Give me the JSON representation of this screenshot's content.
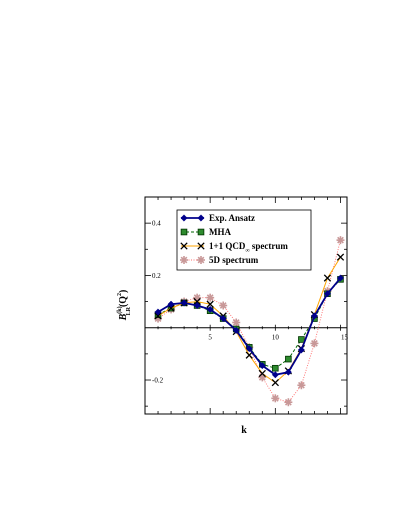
{
  "chart_data": {
    "type": "line",
    "xlabel": "k",
    "ylabel_main": "B",
    "ylabel_sup": "(k)",
    "ylabel_sub": "LR",
    "ylabel_arg": "(Q",
    "ylabel_arg_sup": "2",
    "ylabel_arg_end": ")",
    "xlim": [
      0,
      15.5
    ],
    "ylim": [
      -0.33,
      0.5
    ],
    "xticks": [
      5,
      10,
      15
    ],
    "xtick_labels": [
      "5",
      "10",
      "15"
    ],
    "yticks": [
      -0.2,
      0.2,
      0.4
    ],
    "ytick_labels": [
      "-0.2",
      "0.2",
      "0.4"
    ],
    "legend_position": "top-center",
    "series": [
      {
        "name": "Exp. Ansatz",
        "color": "#00008b",
        "marker": "diamond",
        "x": [
          1,
          2,
          3,
          4,
          5,
          6,
          7,
          8,
          9,
          10,
          11,
          12,
          13,
          14,
          15
        ],
        "y": [
          0.06,
          0.09,
          0.095,
          0.085,
          0.07,
          0.035,
          -0.01,
          -0.08,
          -0.145,
          -0.18,
          -0.17,
          -0.085,
          0.045,
          0.13,
          0.19
        ]
      },
      {
        "name": "MHA",
        "color": "#006400",
        "marker": "square",
        "x": [
          1,
          2,
          3,
          4,
          5,
          6,
          7,
          8,
          9,
          10,
          11,
          12,
          13,
          14,
          15
        ],
        "y": [
          0.05,
          0.075,
          0.095,
          0.085,
          0.065,
          0.035,
          -0.005,
          -0.075,
          -0.14,
          -0.155,
          -0.12,
          -0.045,
          0.035,
          0.13,
          0.185
        ]
      },
      {
        "name": "1+1 QCD",
        "name_sub": "∞",
        "name_suffix": " spectrum",
        "color": "#ffa500",
        "marker": "cross",
        "x": [
          1,
          2,
          3,
          4,
          5,
          6,
          7,
          8,
          9,
          10,
          11,
          12,
          13,
          14,
          15
        ],
        "y": [
          0.045,
          0.075,
          0.095,
          0.1,
          0.09,
          0.045,
          -0.015,
          -0.105,
          -0.175,
          -0.21,
          -0.165,
          -0.08,
          0.05,
          0.19,
          0.27
        ]
      },
      {
        "name": "5D  spectrum",
        "color": "#ff6b6b",
        "marker_color": "#c89898",
        "marker": "asterisk",
        "x": [
          1,
          2,
          3,
          4,
          5,
          6,
          7,
          8,
          9,
          10,
          11,
          12,
          13,
          14,
          15
        ],
        "y": [
          0.035,
          0.07,
          0.1,
          0.115,
          0.115,
          0.085,
          0.02,
          -0.075,
          -0.19,
          -0.27,
          -0.285,
          -0.22,
          -0.06,
          0.14,
          0.335
        ]
      }
    ]
  }
}
